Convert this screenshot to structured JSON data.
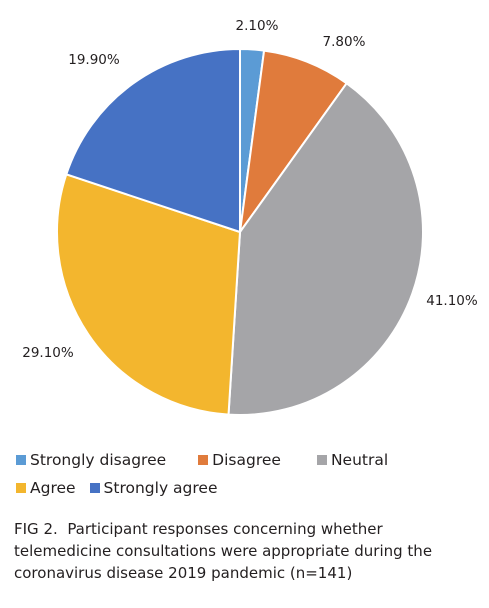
{
  "chart_data": {
    "type": "pie",
    "categories": [
      "Strongly disagree",
      "Disagree",
      "Neutral",
      "Agree",
      "Strongly agree"
    ],
    "values": [
      2.1,
      7.8,
      41.1,
      29.1,
      19.9
    ],
    "value_labels": [
      "2.10%",
      "7.80%",
      "41.10%",
      "29.10%",
      "19.90%"
    ],
    "colors": [
      "#5b9bd5",
      "#e07b3c",
      "#a5a5a8",
      "#f3b62e",
      "#4672c4"
    ],
    "legend_position": "bottom",
    "start_angle": "12 o'clock",
    "direction": "clockwise"
  },
  "legend": {
    "row1": [
      "Strongly disagree",
      "Disagree",
      "Neutral"
    ],
    "row2": [
      "Agree",
      "Strongly agree"
    ]
  },
  "caption": {
    "label": "FIG 2.",
    "text": "Participant responses concerning whether telemedicine consultations were appropriate during the coronavirus disease 2019 pandemic (n=141)"
  }
}
